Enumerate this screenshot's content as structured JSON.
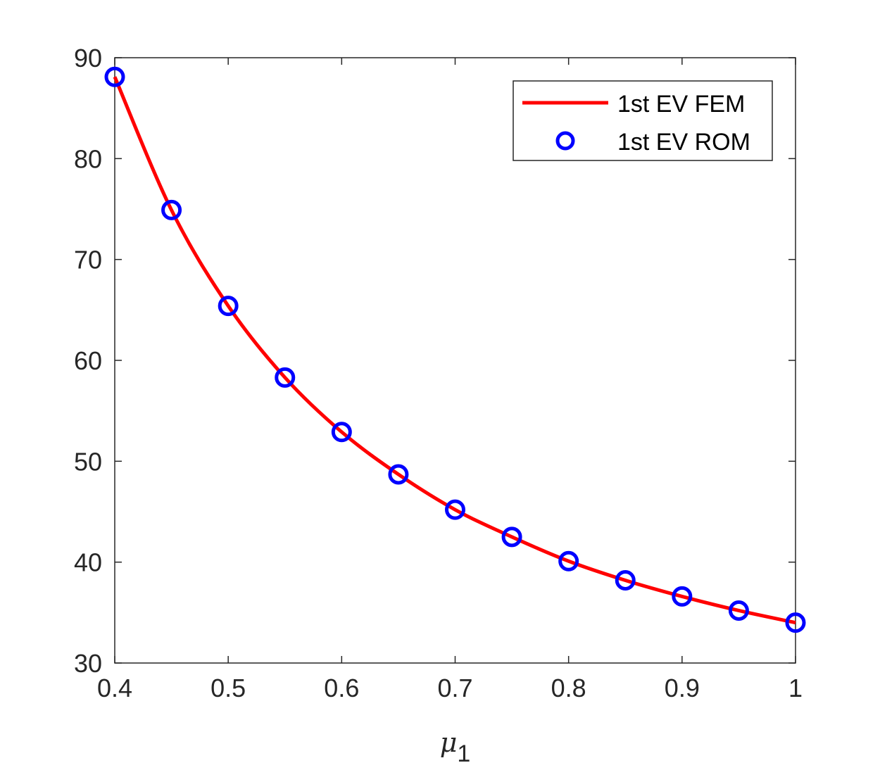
{
  "chart_data": {
    "type": "line",
    "x": [
      0.4,
      0.45,
      0.5,
      0.55,
      0.6,
      0.65,
      0.7,
      0.75,
      0.8,
      0.85,
      0.9,
      0.95,
      1.0
    ],
    "series": [
      {
        "name": "1st EV FEM",
        "style": "line",
        "color": "#ff0000",
        "values": [
          88.1,
          74.9,
          65.4,
          58.3,
          52.9,
          48.7,
          45.2,
          42.5,
          40.1,
          38.2,
          36.6,
          35.2,
          34.0
        ]
      },
      {
        "name": "1st EV ROM",
        "style": "marker-circle",
        "color": "#0000ff",
        "values": [
          88.1,
          74.9,
          65.4,
          58.3,
          52.9,
          48.7,
          45.2,
          42.5,
          40.1,
          38.2,
          36.6,
          35.2,
          34.0
        ]
      }
    ],
    "xlabel": "μ",
    "xlabel_subscript": "1",
    "ylabel": "",
    "xlim": [
      0.4,
      1.0
    ],
    "ylim": [
      30,
      90
    ],
    "xticks": [
      "0.4",
      "0.5",
      "0.6",
      "0.7",
      "0.8",
      "0.9",
      "1"
    ],
    "yticks": [
      "30",
      "40",
      "50",
      "60",
      "70",
      "80",
      "90"
    ],
    "grid": false,
    "legend_position": "top-right"
  }
}
